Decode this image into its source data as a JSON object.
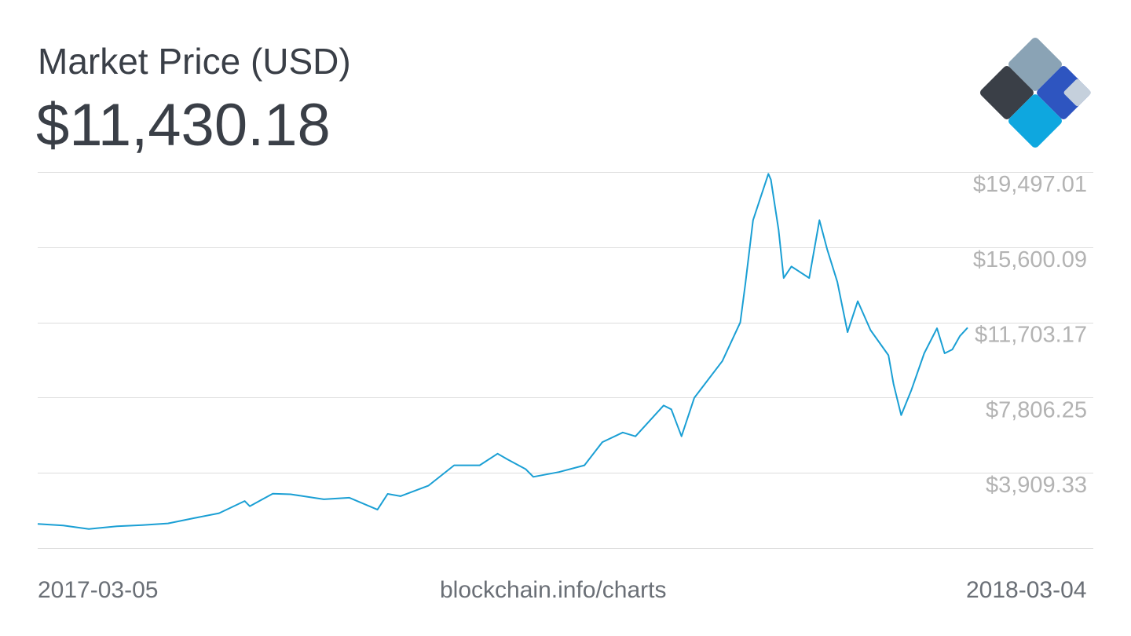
{
  "header": {
    "title": "Market Price (USD)",
    "current_price": "$11,430.18"
  },
  "footer": {
    "start_date": "2017-03-05",
    "source": "blockchain.info/charts",
    "end_date": "2018-03-04"
  },
  "logo": {
    "icon": "blockchain-diamond-logo-icon",
    "colors": [
      "#3a3f47",
      "#8aa3b5",
      "#2e55c0",
      "#0ea7df",
      "#c5d0dc"
    ]
  },
  "colors": {
    "line": "#1a9fd4",
    "grid": "#dddddd",
    "tick_label": "#b3b3b3"
  },
  "chart_data": {
    "type": "line",
    "title": "Market Price (USD)",
    "xlabel": "",
    "ylabel": "",
    "x_range": [
      "2017-03-05",
      "2018-03-04"
    ],
    "ylim": [
      12.41,
      19497.01
    ],
    "y_ticks": [
      3909.33,
      7806.25,
      11703.17,
      15600.09,
      19497.01
    ],
    "y_tick_labels": [
      "$3,909.33",
      "$7,806.25",
      "$11,703.17",
      "$15,600.09",
      "$19,497.01"
    ],
    "grid": true,
    "legend": "none",
    "series": [
      {
        "x": [
          "2017-03-05",
          "2017-03-15",
          "2017-03-25",
          "2017-04-05",
          "2017-04-15",
          "2017-04-25",
          "2017-05-05",
          "2017-05-15",
          "2017-05-25",
          "2017-05-27",
          "2017-06-05",
          "2017-06-12",
          "2017-06-25",
          "2017-07-05",
          "2017-07-16",
          "2017-07-20",
          "2017-07-25",
          "2017-08-05",
          "2017-08-15",
          "2017-08-25",
          "2017-09-01",
          "2017-09-05",
          "2017-09-12",
          "2017-09-15",
          "2017-09-25",
          "2017-10-05",
          "2017-10-12",
          "2017-10-20",
          "2017-10-25",
          "2017-11-05",
          "2017-11-08",
          "2017-11-12",
          "2017-11-17",
          "2017-11-28",
          "2017-12-05",
          "2017-12-07",
          "2017-12-10",
          "2017-12-16",
          "2017-12-17",
          "2017-12-20",
          "2017-12-22",
          "2017-12-25",
          "2018-01-01",
          "2018-01-05",
          "2018-01-08",
          "2018-01-12",
          "2018-01-16",
          "2018-01-20",
          "2018-01-25",
          "2018-02-01",
          "2018-02-03",
          "2018-02-06",
          "2018-02-10",
          "2018-02-15",
          "2018-02-20",
          "2018-02-23",
          "2018-02-26",
          "2018-03-01",
          "2018-03-04"
        ],
        "y": [
          1260,
          1180,
          1000,
          1140,
          1200,
          1290,
          1560,
          1820,
          2450,
          2180,
          2830,
          2800,
          2540,
          2620,
          2000,
          2820,
          2700,
          3250,
          4300,
          4300,
          4900,
          4600,
          4100,
          3700,
          3950,
          4300,
          5500,
          6000,
          5800,
          7400,
          7200,
          5800,
          7800,
          9700,
          11700,
          13700,
          17000,
          19400,
          19100,
          16500,
          14000,
          14600,
          14000,
          17000,
          15500,
          13800,
          11200,
          12800,
          11300,
          10000,
          8500,
          6900,
          8200,
          10100,
          11400,
          10100,
          10300,
          11000,
          11430
        ]
      }
    ]
  }
}
